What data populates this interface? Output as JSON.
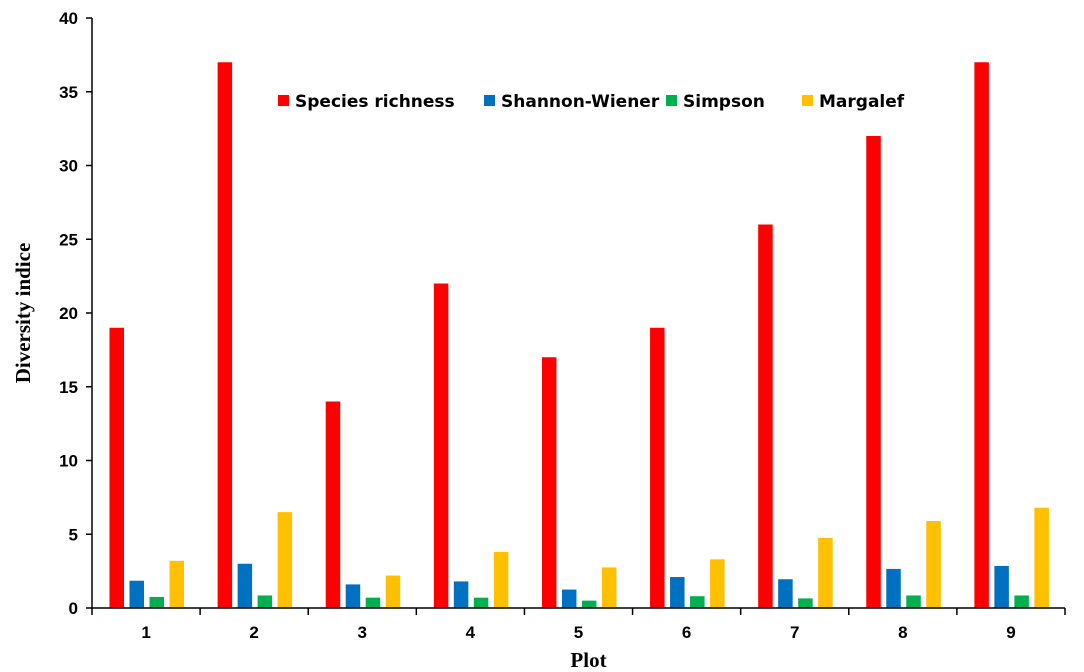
{
  "chart_data": {
    "type": "bar",
    "title": "",
    "xlabel": "Plot",
    "ylabel": "Diversity indice",
    "categories": [
      "1",
      "2",
      "3",
      "4",
      "5",
      "6",
      "7",
      "8",
      "9"
    ],
    "ylim": [
      0,
      40
    ],
    "yticks": [
      0,
      5,
      10,
      15,
      20,
      25,
      30,
      35,
      40
    ],
    "ytick_labels": [
      "0",
      "5",
      "10",
      "15",
      "20",
      "25",
      "30",
      "35",
      "40"
    ],
    "grid": false,
    "legend_position": "top-center",
    "series": [
      {
        "name": "Species richness",
        "color": "#ff0000",
        "values": [
          19,
          37,
          14,
          22,
          17,
          19,
          26,
          32,
          37
        ]
      },
      {
        "name": "Shannon-Wiener",
        "color": "#0070c0",
        "values": [
          1.85,
          3.0,
          1.6,
          1.8,
          1.25,
          2.1,
          1.95,
          2.65,
          2.85
        ]
      },
      {
        "name": "Simpson",
        "color": "#00b050",
        "values": [
          0.75,
          0.85,
          0.7,
          0.7,
          0.5,
          0.8,
          0.65,
          0.85,
          0.85
        ]
      },
      {
        "name": "Margalef",
        "color": "#ffc000",
        "values": [
          3.2,
          6.5,
          2.2,
          3.8,
          2.75,
          3.3,
          4.75,
          5.9,
          6.8
        ]
      }
    ]
  }
}
